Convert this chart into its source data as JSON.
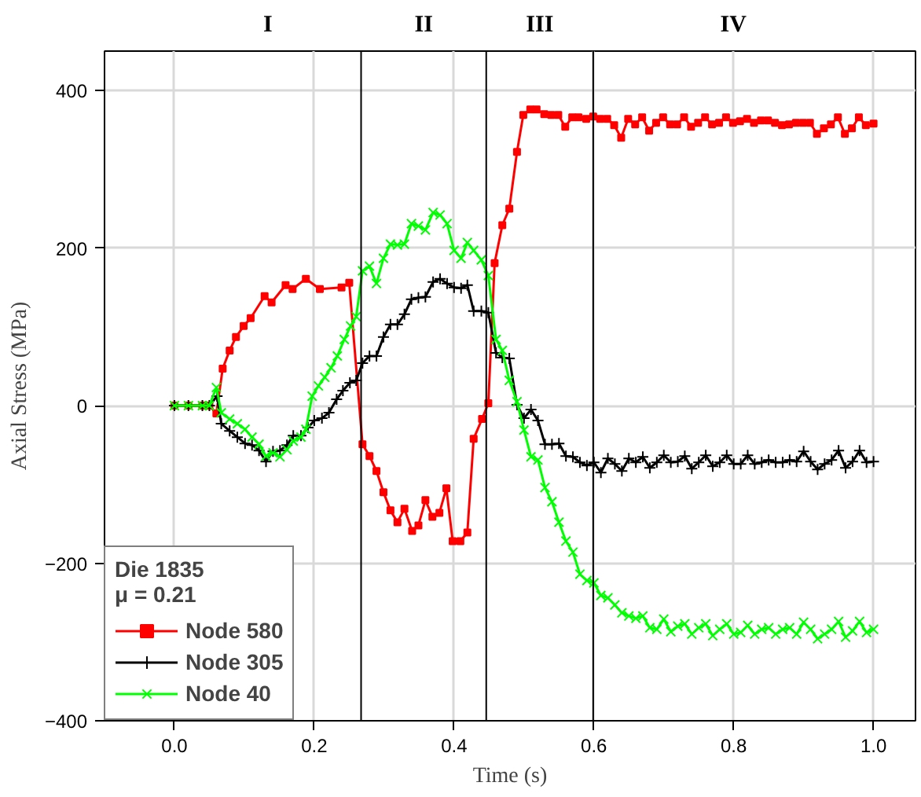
{
  "chart_data": {
    "type": "line",
    "xlabel": "Time (s)",
    "ylabel": "Axial Stress (MPa)",
    "legend_title": "Die 1835\nμ = 0.21",
    "legend": "bottom left",
    "grid": true,
    "xlim": [
      -0.1,
      1.06
    ],
    "ylim": [
      -400,
      450
    ],
    "xticks": [
      {
        "value": 0,
        "label": "0.0"
      },
      {
        "value": 0.2,
        "label": "0.2"
      },
      {
        "value": 0.4,
        "label": "0.4"
      },
      {
        "value": 0.6,
        "label": "0.6"
      },
      {
        "value": 0.8,
        "label": "0.8"
      },
      {
        "value": 1.0,
        "label": "1.0"
      }
    ],
    "yticks": [
      -400,
      -200,
      0,
      200,
      400
    ],
    "ref_lines": [
      {
        "axis": "x",
        "value": 0.267,
        "color": "#000000"
      },
      {
        "axis": "x",
        "value": 0.446,
        "color": "#000000"
      },
      {
        "axis": "x",
        "value": 0.599,
        "color": "#000000"
      }
    ],
    "annotations": [
      "I",
      "II",
      "III",
      "IV"
    ],
    "series": [
      {
        "name": "Node 580",
        "color": "#ff0000",
        "marker": "square",
        "x": [
          0,
          0.02,
          0.04,
          0.05,
          0.06,
          0.069,
          0.079,
          0.088,
          0.099,
          0.109,
          0.129,
          0.139,
          0.159,
          0.169,
          0.188,
          0.208,
          0.239,
          0.25,
          0.269,
          0.279,
          0.289,
          0.299,
          0.309,
          0.319,
          0.329,
          0.34,
          0.349,
          0.359,
          0.369,
          0.379,
          0.389,
          0.398,
          0.409,
          0.419,
          0.428,
          0.44,
          0.449,
          0.458,
          0.469,
          0.479,
          0.49,
          0.499,
          0.509,
          0.518,
          0.529,
          0.539,
          0.549,
          0.559,
          0.569,
          0.578,
          0.589,
          0.599,
          0.609,
          0.619,
          0.629,
          0.639,
          0.649,
          0.659,
          0.669,
          0.679,
          0.689,
          0.699,
          0.709,
          0.719,
          0.729,
          0.739,
          0.749,
          0.759,
          0.769,
          0.779,
          0.789,
          0.799,
          0.809,
          0.819,
          0.829,
          0.839,
          0.849,
          0.859,
          0.869,
          0.879,
          0.889,
          0.899,
          0.909,
          0.919,
          0.929,
          0.939,
          0.949,
          0.959,
          0.969,
          0.979,
          0.989,
          1.0
        ],
        "values": [
          0,
          0,
          0,
          0,
          -10,
          47,
          70,
          87,
          101,
          111,
          139,
          131,
          153,
          148,
          161,
          148,
          150,
          156,
          -49,
          -64,
          -83,
          -110,
          -133,
          -148,
          -131,
          -159,
          -152,
          -120,
          -141,
          -136,
          -105,
          -172,
          -172,
          -161,
          -42,
          -17,
          3,
          181,
          229,
          250,
          322,
          369,
          376,
          376,
          370,
          369,
          369,
          354,
          366,
          366,
          364,
          367,
          364,
          364,
          356,
          340,
          364,
          357,
          366,
          349,
          359,
          366,
          357,
          357,
          366,
          354,
          359,
          366,
          357,
          359,
          366,
          359,
          361,
          364,
          359,
          362,
          362,
          359,
          356,
          357,
          359,
          359,
          359,
          345,
          352,
          357,
          366,
          345,
          352,
          366,
          356,
          358
        ]
      },
      {
        "name": "Node 305",
        "color": "#000000",
        "marker": "cross",
        "x": [
          0,
          0.02,
          0.04,
          0.05,
          0.061,
          0.067,
          0.079,
          0.09,
          0.101,
          0.111,
          0.121,
          0.131,
          0.141,
          0.151,
          0.161,
          0.17,
          0.181,
          0.191,
          0.2,
          0.211,
          0.221,
          0.232,
          0.241,
          0.251,
          0.26,
          0.269,
          0.279,
          0.289,
          0.299,
          0.309,
          0.319,
          0.329,
          0.339,
          0.349,
          0.359,
          0.37,
          0.38,
          0.39,
          0.4,
          0.41,
          0.419,
          0.428,
          0.439,
          0.449,
          0.46,
          0.469,
          0.479,
          0.49,
          0.5,
          0.51,
          0.52,
          0.53,
          0.54,
          0.55,
          0.56,
          0.57,
          0.58,
          0.59,
          0.6,
          0.61,
          0.62,
          0.63,
          0.64,
          0.65,
          0.66,
          0.67,
          0.68,
          0.69,
          0.7,
          0.71,
          0.72,
          0.73,
          0.74,
          0.75,
          0.76,
          0.77,
          0.78,
          0.79,
          0.8,
          0.81,
          0.82,
          0.83,
          0.84,
          0.85,
          0.86,
          0.87,
          0.88,
          0.89,
          0.9,
          0.91,
          0.92,
          0.93,
          0.94,
          0.95,
          0.96,
          0.97,
          0.98,
          0.99,
          1.0
        ],
        "values": [
          0,
          0,
          0,
          0,
          12,
          -23,
          -32,
          -40,
          -48,
          -50,
          -57,
          -71,
          -58,
          -57,
          -50,
          -38,
          -38,
          -28,
          -19,
          -16,
          -9,
          8,
          19,
          29,
          32,
          54,
          63,
          63,
          87,
          103,
          103,
          116,
          135,
          137,
          138,
          157,
          161,
          155,
          150,
          149,
          153,
          120,
          120,
          118,
          67,
          61,
          60,
          1,
          -16,
          -5,
          -19,
          -49,
          -49,
          -48,
          -64,
          -65,
          -72,
          -76,
          -72,
          -85,
          -67,
          -74,
          -83,
          -67,
          -72,
          -65,
          -79,
          -72,
          -63,
          -72,
          -71,
          -64,
          -80,
          -72,
          -63,
          -77,
          -72,
          -63,
          -74,
          -74,
          -63,
          -74,
          -72,
          -69,
          -72,
          -72,
          -69,
          -71,
          -58,
          -71,
          -81,
          -74,
          -69,
          -57,
          -79,
          -71,
          -57,
          -72,
          -71
        ]
      },
      {
        "name": "Node 40",
        "color": "#00ff00",
        "marker": "x",
        "x": [
          0,
          0.02,
          0.04,
          0.05,
          0.06,
          0.067,
          0.079,
          0.09,
          0.101,
          0.111,
          0.121,
          0.131,
          0.141,
          0.151,
          0.161,
          0.17,
          0.181,
          0.188,
          0.197,
          0.206,
          0.215,
          0.224,
          0.233,
          0.243,
          0.252,
          0.26,
          0.269,
          0.279,
          0.289,
          0.299,
          0.309,
          0.319,
          0.329,
          0.339,
          0.349,
          0.359,
          0.37,
          0.38,
          0.39,
          0.4,
          0.41,
          0.419,
          0.428,
          0.439,
          0.449,
          0.46,
          0.469,
          0.479,
          0.49,
          0.5,
          0.51,
          0.52,
          0.53,
          0.54,
          0.55,
          0.56,
          0.57,
          0.58,
          0.59,
          0.6,
          0.61,
          0.62,
          0.63,
          0.64,
          0.65,
          0.66,
          0.67,
          0.68,
          0.69,
          0.7,
          0.71,
          0.72,
          0.73,
          0.74,
          0.75,
          0.76,
          0.77,
          0.78,
          0.79,
          0.8,
          0.81,
          0.82,
          0.83,
          0.84,
          0.85,
          0.86,
          0.87,
          0.88,
          0.89,
          0.9,
          0.91,
          0.92,
          0.93,
          0.94,
          0.95,
          0.96,
          0.97,
          0.98,
          0.99,
          1.0
        ],
        "values": [
          0,
          0,
          0,
          0,
          23,
          -9,
          -17,
          -23,
          -30,
          -40,
          -49,
          -64,
          -60,
          -65,
          -56,
          -45,
          -40,
          -30,
          12,
          25,
          36,
          48,
          63,
          84,
          101,
          113,
          171,
          177,
          155,
          187,
          205,
          204,
          205,
          231,
          228,
          223,
          245,
          242,
          231,
          197,
          187,
          207,
          197,
          185,
          165,
          84,
          70,
          32,
          5,
          -31,
          -65,
          -69,
          -104,
          -122,
          -148,
          -172,
          -186,
          -214,
          -222,
          -225,
          -241,
          -244,
          -253,
          -263,
          -267,
          -270,
          -267,
          -282,
          -284,
          -271,
          -287,
          -280,
          -277,
          -290,
          -282,
          -277,
          -292,
          -284,
          -277,
          -290,
          -288,
          -279,
          -290,
          -284,
          -282,
          -290,
          -284,
          -282,
          -290,
          -275,
          -284,
          -296,
          -290,
          -284,
          -274,
          -294,
          -286,
          -274,
          -288,
          -284
        ]
      }
    ]
  }
}
